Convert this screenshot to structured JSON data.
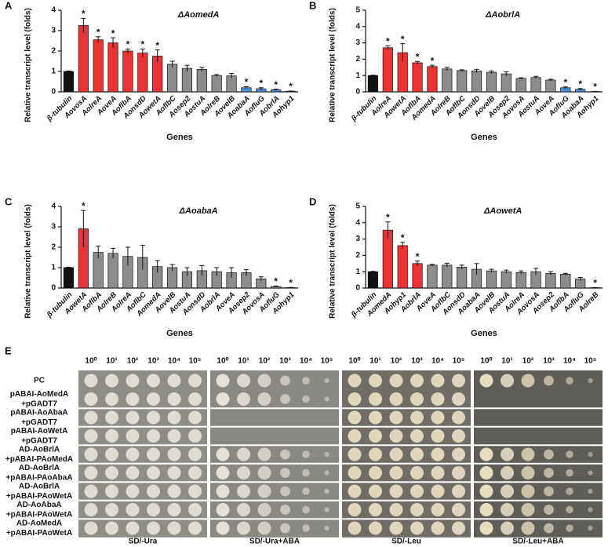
{
  "chart_data": [
    {
      "type": "bar",
      "panel": "A",
      "title": "ΔAomedA",
      "y_label": "Relative transcript level (folds)",
      "x_label": "Genes",
      "categories": [
        "β-tubulin",
        "AovosA",
        "AolreA",
        "AoveA",
        "AoflbA",
        "AonsdD",
        "AowetA",
        "AoflbC",
        "Aosep2",
        "AostuA",
        "AolreB",
        "AovelB",
        "AoabaA",
        "AofluG",
        "AobrlA",
        "Aohyp1"
      ],
      "values": [
        1.0,
        3.25,
        2.55,
        2.4,
        2.0,
        1.9,
        1.75,
        1.35,
        1.15,
        1.1,
        0.8,
        0.78,
        0.2,
        0.15,
        0.1,
        0.03
      ],
      "errors": [
        0.02,
        0.35,
        0.15,
        0.25,
        0.1,
        0.2,
        0.3,
        0.15,
        0.15,
        0.1,
        0.05,
        0.12,
        0.05,
        0.05,
        0.03,
        0.01
      ],
      "colors": [
        "#111111",
        "#ee3233",
        "#ee3233",
        "#ee3233",
        "#ee3233",
        "#ee3233",
        "#ee3233",
        "#8c8c8c",
        "#8c8c8c",
        "#8c8c8c",
        "#8c8c8c",
        "#8c8c8c",
        "#4a90d9",
        "#4a90d9",
        "#4a90d9",
        "#4a90d9"
      ],
      "significant": [
        false,
        true,
        true,
        true,
        true,
        true,
        true,
        false,
        false,
        false,
        false,
        false,
        true,
        true,
        true,
        true
      ],
      "sig_label": "*",
      "ylim": [
        0,
        4
      ],
      "yticks": [
        0,
        1,
        2,
        3,
        4
      ]
    },
    {
      "type": "bar",
      "panel": "B",
      "title": "ΔAobrlA",
      "y_label": "Relative transcript level (folds)",
      "x_label": "Genes",
      "categories": [
        "β-tubulin",
        "AolreA",
        "AowetA",
        "AoflbA",
        "AomedA",
        "AolreB",
        "AoflbC",
        "AonsdD",
        "AovelB",
        "Aosep2",
        "AovosA",
        "AostuA",
        "AoveA",
        "AofluG",
        "AoabaA",
        "Aohyp1"
      ],
      "values": [
        1.0,
        2.7,
        2.4,
        1.78,
        1.55,
        1.4,
        1.3,
        1.28,
        1.2,
        1.1,
        0.82,
        0.88,
        0.72,
        0.25,
        0.15,
        0.02
      ],
      "errors": [
        0.02,
        0.12,
        0.55,
        0.08,
        0.08,
        0.1,
        0.05,
        0.1,
        0.08,
        0.12,
        0.04,
        0.07,
        0.05,
        0.05,
        0.05,
        0.01
      ],
      "colors": [
        "#111111",
        "#ee3233",
        "#ee3233",
        "#ee3233",
        "#ee3233",
        "#8c8c8c",
        "#8c8c8c",
        "#8c8c8c",
        "#8c8c8c",
        "#8c8c8c",
        "#8c8c8c",
        "#8c8c8c",
        "#8c8c8c",
        "#4a90d9",
        "#4a90d9",
        "#4a90d9"
      ],
      "significant": [
        false,
        true,
        true,
        true,
        true,
        false,
        false,
        false,
        false,
        false,
        false,
        false,
        false,
        true,
        true,
        true
      ],
      "sig_label": "*",
      "ylim": [
        0,
        5
      ],
      "yticks": [
        0,
        1,
        2,
        3,
        4,
        5
      ]
    },
    {
      "type": "bar",
      "panel": "C",
      "title": "ΔAoabaA",
      "y_label": "Relative transcript level (folds)",
      "x_label": "Genes",
      "categories": [
        "β-tubulin",
        "AowetA",
        "AoflbA",
        "AolreB",
        "AolreA",
        "AoflbC",
        "AomedA",
        "AovelB",
        "AostuA",
        "AonsdD",
        "AobrlA",
        "AoveA",
        "Aosep2",
        "AovosA",
        "AofluG",
        "Aohyp1"
      ],
      "values": [
        1.0,
        2.9,
        1.75,
        1.7,
        1.55,
        1.5,
        1.05,
        1.0,
        0.8,
        0.85,
        0.8,
        0.75,
        0.75,
        0.45,
        0.07,
        0.02
      ],
      "errors": [
        0.02,
        0.9,
        0.3,
        0.25,
        0.45,
        0.6,
        0.3,
        0.15,
        0.2,
        0.25,
        0.2,
        0.25,
        0.15,
        0.1,
        0.03,
        0.01
      ],
      "colors": [
        "#111111",
        "#ee3233",
        "#8c8c8c",
        "#8c8c8c",
        "#8c8c8c",
        "#8c8c8c",
        "#8c8c8c",
        "#8c8c8c",
        "#8c8c8c",
        "#8c8c8c",
        "#8c8c8c",
        "#8c8c8c",
        "#8c8c8c",
        "#8c8c8c",
        "#8c8c8c",
        "#8c8c8c"
      ],
      "significant": [
        false,
        true,
        false,
        false,
        false,
        false,
        false,
        false,
        false,
        false,
        false,
        false,
        false,
        false,
        true,
        true
      ],
      "sig_label": "*",
      "ylim": [
        0,
        4
      ],
      "yticks": [
        0,
        1,
        2,
        3,
        4
      ]
    },
    {
      "type": "bar",
      "panel": "D",
      "title": "ΔAowetA",
      "y_label": "Relative transcript level (folds)",
      "x_label": "Genes",
      "categories": [
        "β-tubulin",
        "AomedA",
        "Aohyp1",
        "AobrlA",
        "AoveA",
        "AoflbC",
        "AonsdD",
        "AoabaA",
        "AovelB",
        "AostuA",
        "AolreA",
        "AovosA",
        "Aosep2",
        "AoflbA",
        "AofluG",
        "AolreB"
      ],
      "values": [
        1.0,
        3.55,
        2.6,
        1.5,
        1.4,
        1.4,
        1.28,
        1.15,
        1.05,
        1.0,
        0.95,
        1.0,
        0.9,
        0.85,
        0.55,
        0.02
      ],
      "errors": [
        0.02,
        0.5,
        0.2,
        0.15,
        0.05,
        0.12,
        0.12,
        0.35,
        0.1,
        0.1,
        0.1,
        0.2,
        0.1,
        0.05,
        0.1,
        0.01
      ],
      "colors": [
        "#111111",
        "#ee3233",
        "#ee3233",
        "#ee3233",
        "#8c8c8c",
        "#8c8c8c",
        "#8c8c8c",
        "#8c8c8c",
        "#8c8c8c",
        "#8c8c8c",
        "#8c8c8c",
        "#8c8c8c",
        "#8c8c8c",
        "#8c8c8c",
        "#8c8c8c",
        "#8c8c8c"
      ],
      "significant": [
        false,
        true,
        true,
        true,
        false,
        false,
        false,
        false,
        false,
        false,
        false,
        false,
        false,
        false,
        false,
        true
      ],
      "sig_label": "*",
      "ylim": [
        0,
        5
      ],
      "yticks": [
        0,
        1,
        2,
        3,
        4,
        5
      ]
    }
  ],
  "panel_e": {
    "panel": "E",
    "dilutions": [
      "10⁰",
      "10¹",
      "10²",
      "10³",
      "10⁴",
      "10⁵"
    ],
    "media": [
      "SD/-Ura",
      "SD/-Ura+ABA",
      "SD/-Leu",
      "SD/-Leu+ABA"
    ],
    "strains": [
      [
        "PC"
      ],
      [
        "pABAI-AoMedA",
        "+pGADT7"
      ],
      [
        "pABAI-AoAbaA",
        "+pGADT7"
      ],
      [
        "pABAI-AoWetA",
        "+pGADT7"
      ],
      [
        "AD-AoBrlA",
        "+pABAI-PAoMedA"
      ],
      [
        "AD-AoBrlA",
        "+pABAI-PAoAbaA"
      ],
      [
        "AD-AoBrlA",
        "+pABAI-PAoWetA"
      ],
      [
        "AD-AoAbaA",
        "+pABAI-PAoWetA"
      ],
      [
        "AD-AoMedA",
        "+pABAI-PAoWetA"
      ]
    ]
  }
}
